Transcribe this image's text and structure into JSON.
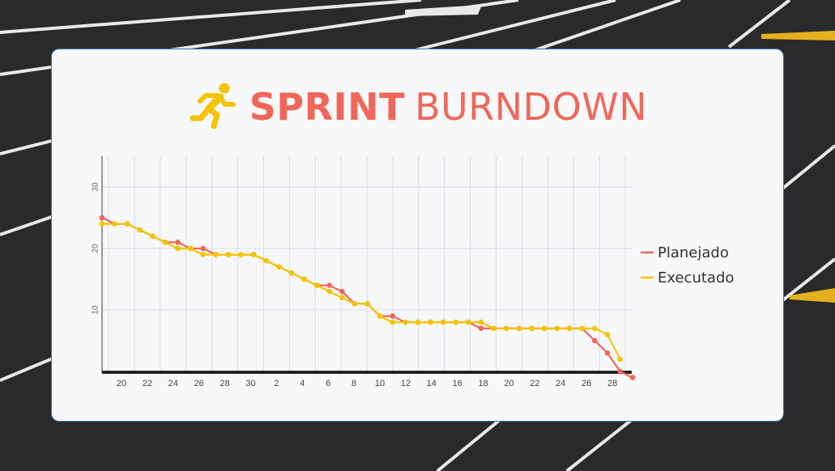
{
  "header": {
    "title_bold": "SPRINT",
    "title_light": "BURNDOWN",
    "icon": "running-person-icon"
  },
  "colors": {
    "accent": "#f0675a",
    "icon": "#f5c400",
    "planejado": "#f0675a",
    "executado": "#f5c400"
  },
  "chart_data": {
    "type": "line",
    "title": "",
    "xlabel": "",
    "ylabel": "",
    "ylim": [
      0,
      35
    ],
    "y_ticks": [
      10,
      20,
      30
    ],
    "x_ticks": [
      "20",
      "22",
      "24",
      "26",
      "28",
      "30",
      "2",
      "4",
      "6",
      "8",
      "10",
      "12",
      "14",
      "16",
      "18",
      "20",
      "22",
      "24",
      "26",
      "28"
    ],
    "grid": true,
    "legend_position": "right",
    "series": [
      {
        "name": "Planejado",
        "color": "#f0675a",
        "values": [
          25,
          24,
          24,
          23,
          22,
          21,
          21,
          20,
          20,
          19,
          19,
          19,
          19,
          18,
          17,
          16,
          15,
          14,
          14,
          13,
          11,
          11,
          9,
          9,
          8,
          8,
          8,
          8,
          8,
          8,
          7,
          7,
          7,
          7,
          7,
          7,
          7,
          7,
          7,
          5,
          3,
          0,
          -1
        ]
      },
      {
        "name": "Executado",
        "color": "#f5c400",
        "values": [
          24,
          24,
          24,
          23,
          22,
          21,
          20,
          20,
          19,
          19,
          19,
          19,
          19,
          18,
          17,
          16,
          15,
          14,
          13,
          12,
          11,
          11,
          9,
          8,
          8,
          8,
          8,
          8,
          8,
          8,
          8,
          7,
          7,
          7,
          7,
          7,
          7,
          7,
          7,
          7,
          6,
          2
        ]
      }
    ]
  }
}
